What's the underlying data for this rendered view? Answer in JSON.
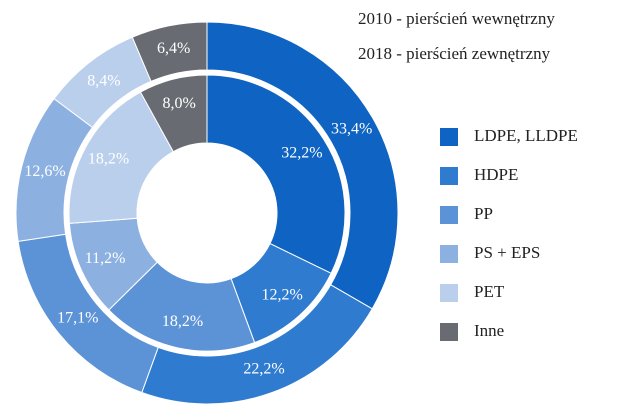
{
  "chart_data": {
    "type": "nested-donut",
    "categories": [
      "LDPE, LLDPE",
      "HDPE",
      "PP",
      "PS + EPS",
      "PET",
      "Inne"
    ],
    "colors": [
      "#0f63c2",
      "#2e7bcf",
      "#5c93d7",
      "#8cb1e1",
      "#bacfec",
      "#686c72"
    ],
    "series": [
      {
        "name": "2010 - pierścień wewnętrzny",
        "ring": "inner",
        "values": [
          32.2,
          12.2,
          18.2,
          11.2,
          18.2,
          8.0
        ],
        "value_labels": [
          "32,2%",
          "12,2%",
          "18,2%",
          "11,2%",
          "18,2%",
          "8,0%"
        ]
      },
      {
        "name": "2018 - pierścień zewnętrzny",
        "ring": "outer",
        "values": [
          33.4,
          22.2,
          17.1,
          12.6,
          8.4,
          6.4
        ],
        "value_labels": [
          "33,4%",
          "22,2%",
          "17,1%",
          "12,6%",
          "8,4%",
          "6,4%"
        ]
      }
    ]
  }
}
